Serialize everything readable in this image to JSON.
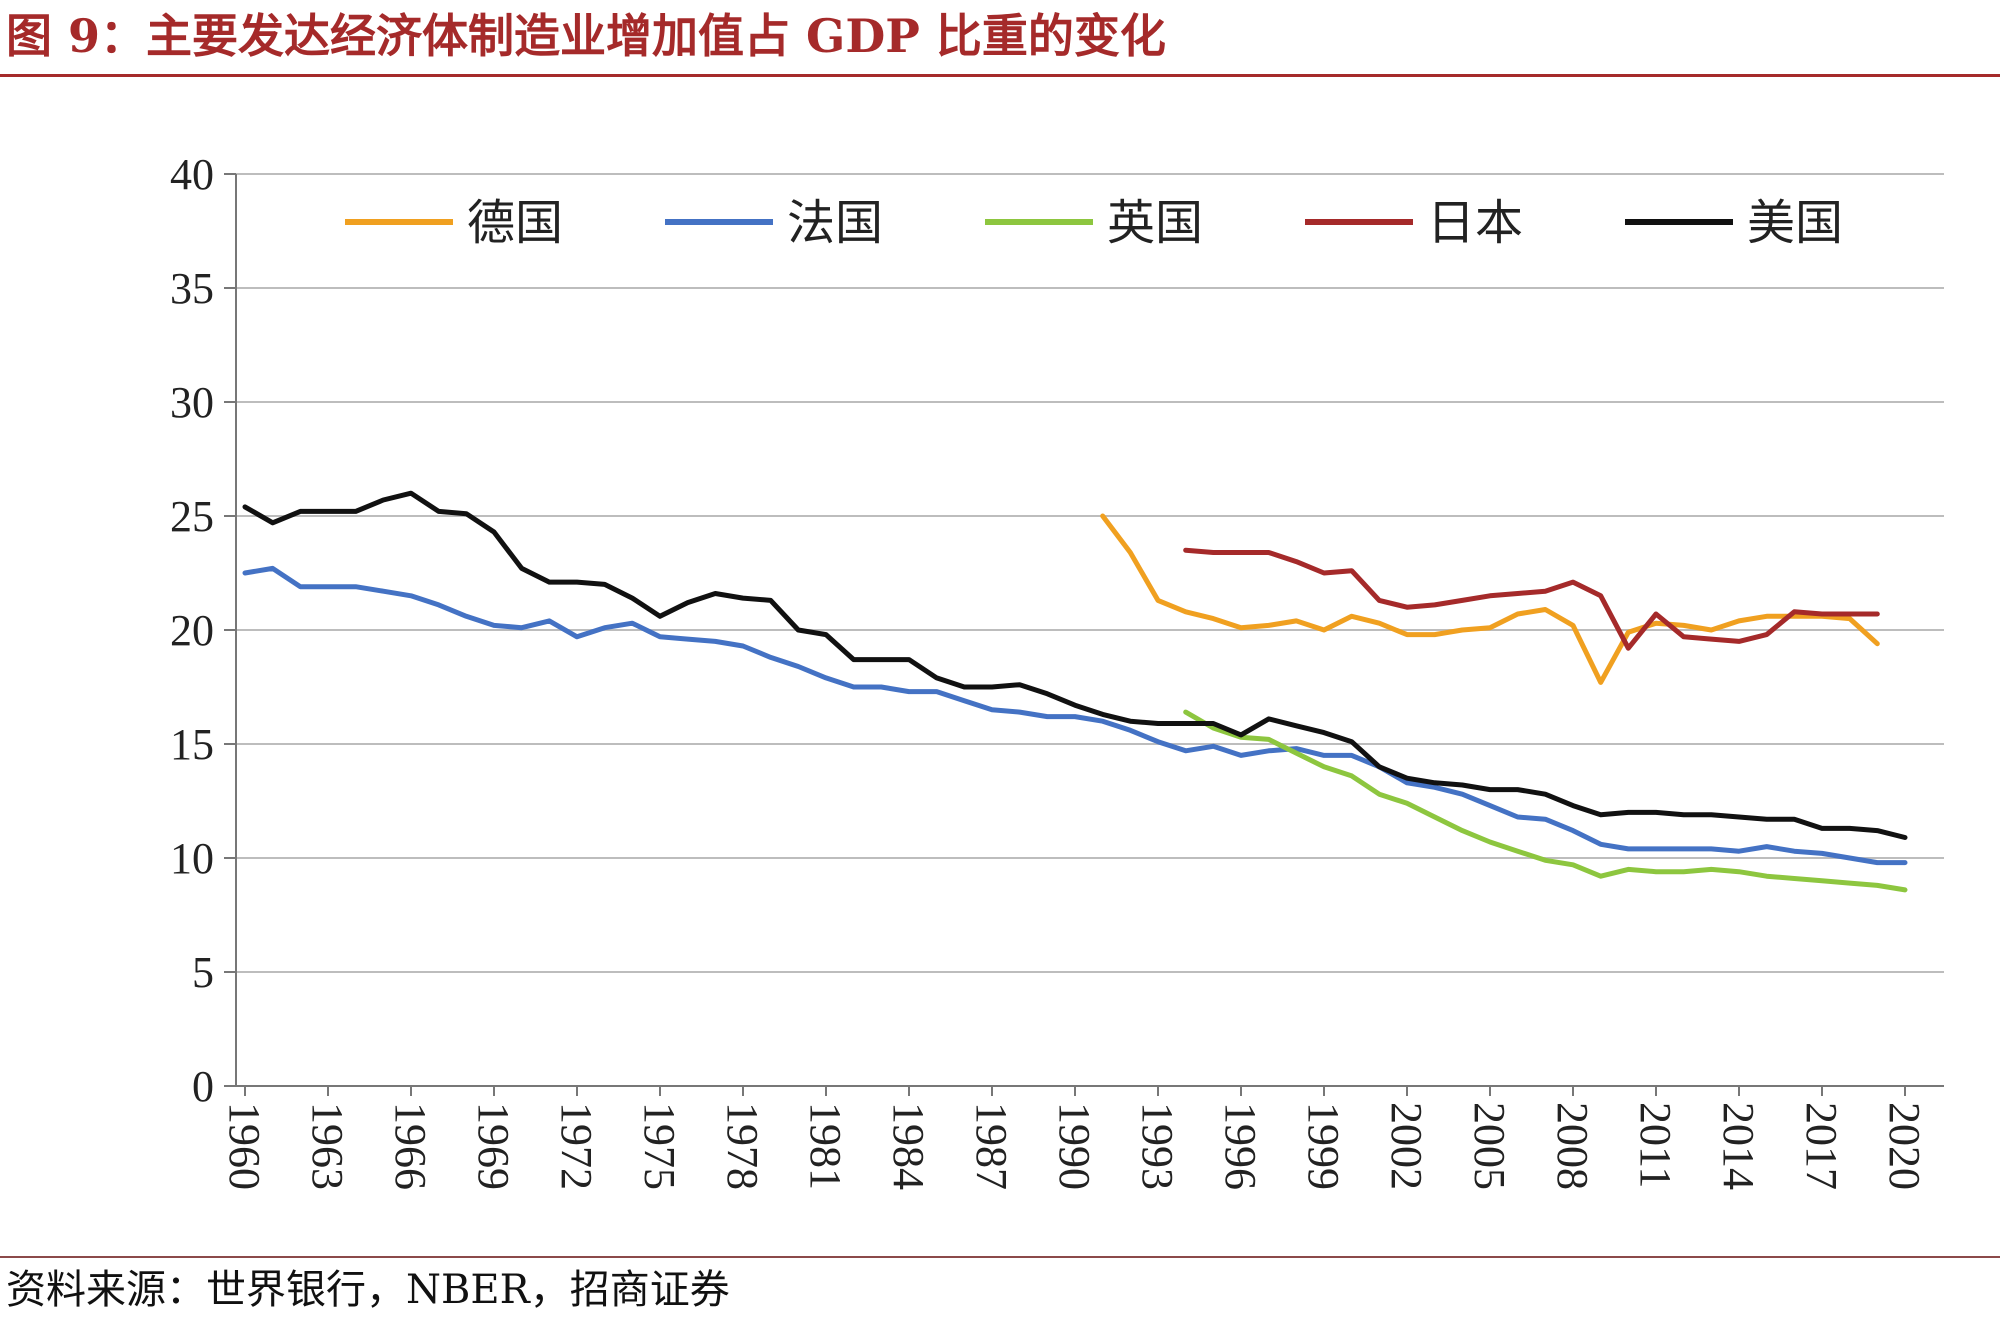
{
  "header": {
    "title": "图 9：主要发达经济体制造业增加值占 GDP 比重的变化"
  },
  "footer": {
    "source": "资料来源：世界银行，NBER，招商证券"
  },
  "chart_data": {
    "type": "line",
    "title": "",
    "xlabel": "",
    "ylabel": "",
    "ylim": [
      0,
      40
    ],
    "yticks": [
      0,
      5,
      10,
      15,
      20,
      25,
      30,
      35,
      40
    ],
    "xlim": [
      1960,
      2020
    ],
    "xticks": [
      1960,
      1963,
      1966,
      1969,
      1972,
      1975,
      1978,
      1981,
      1984,
      1987,
      1990,
      1993,
      1996,
      1999,
      2002,
      2005,
      2008,
      2011,
      2014,
      2017,
      2020
    ],
    "grid": "horizontal",
    "legend_position": "top",
    "series": [
      {
        "name": "德国",
        "color": "#f0a020",
        "x": [
          1991,
          1992,
          1993,
          1994,
          1995,
          1996,
          1997,
          1998,
          1999,
          2000,
          2001,
          2002,
          2003,
          2004,
          2005,
          2006,
          2007,
          2008,
          2009,
          2010,
          2011,
          2012,
          2013,
          2014,
          2015,
          2016,
          2017,
          2018,
          2019
        ],
        "y": [
          25.0,
          23.4,
          21.3,
          20.8,
          20.5,
          20.1,
          20.2,
          20.4,
          20.0,
          20.6,
          20.3,
          19.8,
          19.8,
          20.0,
          20.1,
          20.7,
          20.9,
          20.2,
          17.7,
          19.9,
          20.3,
          20.2,
          20.0,
          20.4,
          20.6,
          20.6,
          20.6,
          20.5,
          19.4
        ]
      },
      {
        "name": "法国",
        "color": "#4472c4",
        "x": [
          1960,
          1961,
          1962,
          1963,
          1964,
          1965,
          1966,
          1967,
          1968,
          1969,
          1970,
          1971,
          1972,
          1973,
          1974,
          1975,
          1976,
          1977,
          1978,
          1979,
          1980,
          1981,
          1982,
          1983,
          1984,
          1985,
          1986,
          1987,
          1988,
          1989,
          1990,
          1991,
          1992,
          1993,
          1994,
          1995,
          1996,
          1997,
          1998,
          1999,
          2000,
          2001,
          2002,
          2003,
          2004,
          2005,
          2006,
          2007,
          2008,
          2009,
          2010,
          2011,
          2012,
          2013,
          2014,
          2015,
          2016,
          2017,
          2018,
          2019,
          2020
        ],
        "y": [
          22.5,
          22.7,
          21.9,
          21.9,
          21.9,
          21.7,
          21.5,
          21.1,
          20.6,
          20.2,
          20.1,
          20.4,
          19.7,
          20.1,
          20.3,
          19.7,
          19.6,
          19.5,
          19.3,
          18.8,
          18.4,
          17.9,
          17.5,
          17.5,
          17.3,
          17.3,
          16.9,
          16.5,
          16.4,
          16.2,
          16.2,
          16.0,
          15.6,
          15.1,
          14.7,
          14.9,
          14.5,
          14.7,
          14.8,
          14.5,
          14.5,
          14.0,
          13.3,
          13.1,
          12.8,
          12.3,
          11.8,
          11.7,
          11.2,
          10.6,
          10.4,
          10.4,
          10.4,
          10.4,
          10.3,
          10.5,
          10.3,
          10.2,
          10.0,
          9.8,
          9.8
        ]
      },
      {
        "name": "英国",
        "color": "#8dc63f",
        "x": [
          1994,
          1995,
          1996,
          1997,
          1998,
          1999,
          2000,
          2001,
          2002,
          2003,
          2004,
          2005,
          2006,
          2007,
          2008,
          2009,
          2010,
          2011,
          2012,
          2013,
          2014,
          2015,
          2016,
          2017,
          2018,
          2019,
          2020
        ],
        "y": [
          16.4,
          15.7,
          15.3,
          15.2,
          14.6,
          14.0,
          13.6,
          12.8,
          12.4,
          11.8,
          11.2,
          10.7,
          10.3,
          9.9,
          9.7,
          9.2,
          9.5,
          9.4,
          9.4,
          9.5,
          9.4,
          9.2,
          9.1,
          9.0,
          8.9,
          8.8,
          8.6
        ]
      },
      {
        "name": "日本",
        "color": "#a52a2a",
        "x": [
          1994,
          1995,
          1996,
          1997,
          1998,
          1999,
          2000,
          2001,
          2002,
          2003,
          2004,
          2005,
          2006,
          2007,
          2008,
          2009,
          2010,
          2011,
          2012,
          2013,
          2014,
          2015,
          2016,
          2017,
          2018,
          2019
        ],
        "y": [
          23.5,
          23.4,
          23.4,
          23.4,
          23.0,
          22.5,
          22.6,
          21.3,
          21.0,
          21.1,
          21.3,
          21.5,
          21.6,
          21.7,
          22.1,
          21.5,
          19.2,
          20.7,
          19.7,
          19.6,
          19.5,
          19.8,
          20.8,
          20.7,
          20.7,
          20.7
        ]
      },
      {
        "name": "美国",
        "color": "#111111",
        "x": [
          1960,
          1961,
          1962,
          1963,
          1964,
          1965,
          1966,
          1967,
          1968,
          1969,
          1970,
          1971,
          1972,
          1973,
          1974,
          1975,
          1976,
          1977,
          1978,
          1979,
          1980,
          1981,
          1982,
          1983,
          1984,
          1985,
          1986,
          1987,
          1988,
          1989,
          1990,
          1991,
          1992,
          1993,
          1994,
          1995,
          1996,
          1997,
          1998,
          1999,
          2000,
          2001,
          2002,
          2003,
          2004,
          2005,
          2006,
          2007,
          2008,
          2009,
          2010,
          2011,
          2012,
          2013,
          2014,
          2015,
          2016,
          2017,
          2018,
          2019,
          2020
        ],
        "y": [
          25.4,
          24.7,
          25.2,
          25.2,
          25.2,
          25.7,
          26.0,
          25.2,
          25.1,
          24.3,
          22.7,
          22.1,
          22.1,
          22.0,
          21.4,
          20.6,
          21.2,
          21.6,
          21.4,
          21.3,
          20.0,
          19.8,
          18.7,
          18.7,
          18.7,
          17.9,
          17.5,
          17.5,
          17.6,
          17.2,
          16.7,
          16.3,
          16.0,
          15.9,
          15.9,
          15.9,
          15.4,
          16.1,
          15.8,
          15.5,
          15.1,
          14.0,
          13.5,
          13.3,
          13.2,
          13.0,
          13.0,
          12.8,
          12.3,
          11.9,
          12.0,
          12.0,
          11.9,
          11.9,
          11.8,
          11.7,
          11.7,
          11.3,
          11.3,
          11.2,
          10.9
        ]
      }
    ]
  }
}
